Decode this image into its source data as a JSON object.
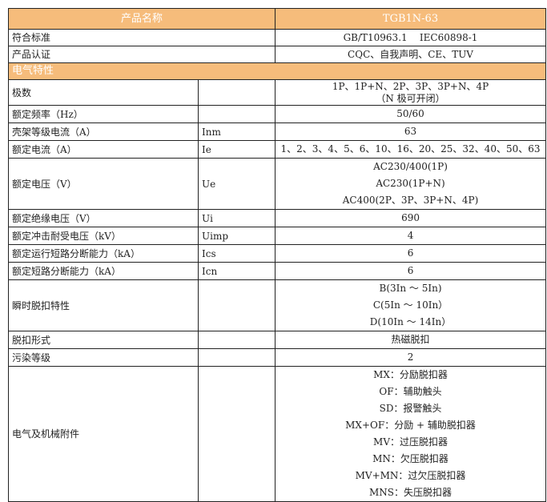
{
  "header": {
    "label": "产品名称",
    "value": "TGB1N-63"
  },
  "rows_top": [
    {
      "label": "符合标准",
      "value": "GB/T10963.1    IEC60898-1"
    },
    {
      "label": "产品认证",
      "value": "CQC、自我声明、CE、TUV"
    }
  ],
  "section": "电气特性",
  "rows": [
    {
      "label": "极数",
      "symbol": "",
      "values": [
        "1P、1P+N、2P、3P、3P+N、4P",
        "（N 极可开闭）"
      ]
    },
    {
      "label": "额定频率（Hz）",
      "symbol": "",
      "values": [
        "50/60"
      ]
    },
    {
      "label": "壳架等级电流（A）",
      "symbol": "Inm",
      "values": [
        "63"
      ]
    },
    {
      "label": "额定电流（A）",
      "symbol": "Ie",
      "values": [
        "1、2、3、4、5、6、10、16、20、25、32、40、50、63"
      ]
    },
    {
      "label": "额定电压（V）",
      "symbol": "Ue",
      "values": [
        "AC230/400(1P)",
        "AC230(1P+N)",
        "AC400(2P、3P、3P+N、4P)"
      ]
    },
    {
      "label": "额定绝缘电压（V）",
      "symbol": "Ui",
      "values": [
        "690"
      ]
    },
    {
      "label": "额定冲击耐受电压（kV）",
      "symbol": "Uimp",
      "values": [
        "4"
      ]
    },
    {
      "label": "额定运行短路分断能力（kA）",
      "symbol": "Ics",
      "values": [
        "6"
      ]
    },
    {
      "label": "额定短路分断能力（kA）",
      "symbol": "Icn",
      "values": [
        "6"
      ]
    },
    {
      "label": "瞬时脱扣特性",
      "symbol": "",
      "values": [
        "B(3In ～ 5In)",
        "C(5In ～ 10In）",
        "D(10In ～ 14In）"
      ]
    },
    {
      "label": "脱扣形式",
      "symbol": "",
      "values": [
        "热磁脱扣"
      ]
    },
    {
      "label": "污染等级",
      "symbol": "",
      "values": [
        "2"
      ]
    },
    {
      "label": "电气及机械附件",
      "symbol": "",
      "values": [
        "MX：分励脱扣器",
        "OF：辅助触头",
        "SD：报警触头",
        "MX+OF：分励 + 辅助脱扣器",
        "MV：过压脱扣器",
        "MN：欠压脱扣器",
        "MV+MN：过欠压脱扣器",
        "MNS：失压脱扣器"
      ]
    }
  ],
  "colors": {
    "header_bg": "#F6BC7B",
    "header_text": "#FFFFFF",
    "border": "#222222"
  }
}
